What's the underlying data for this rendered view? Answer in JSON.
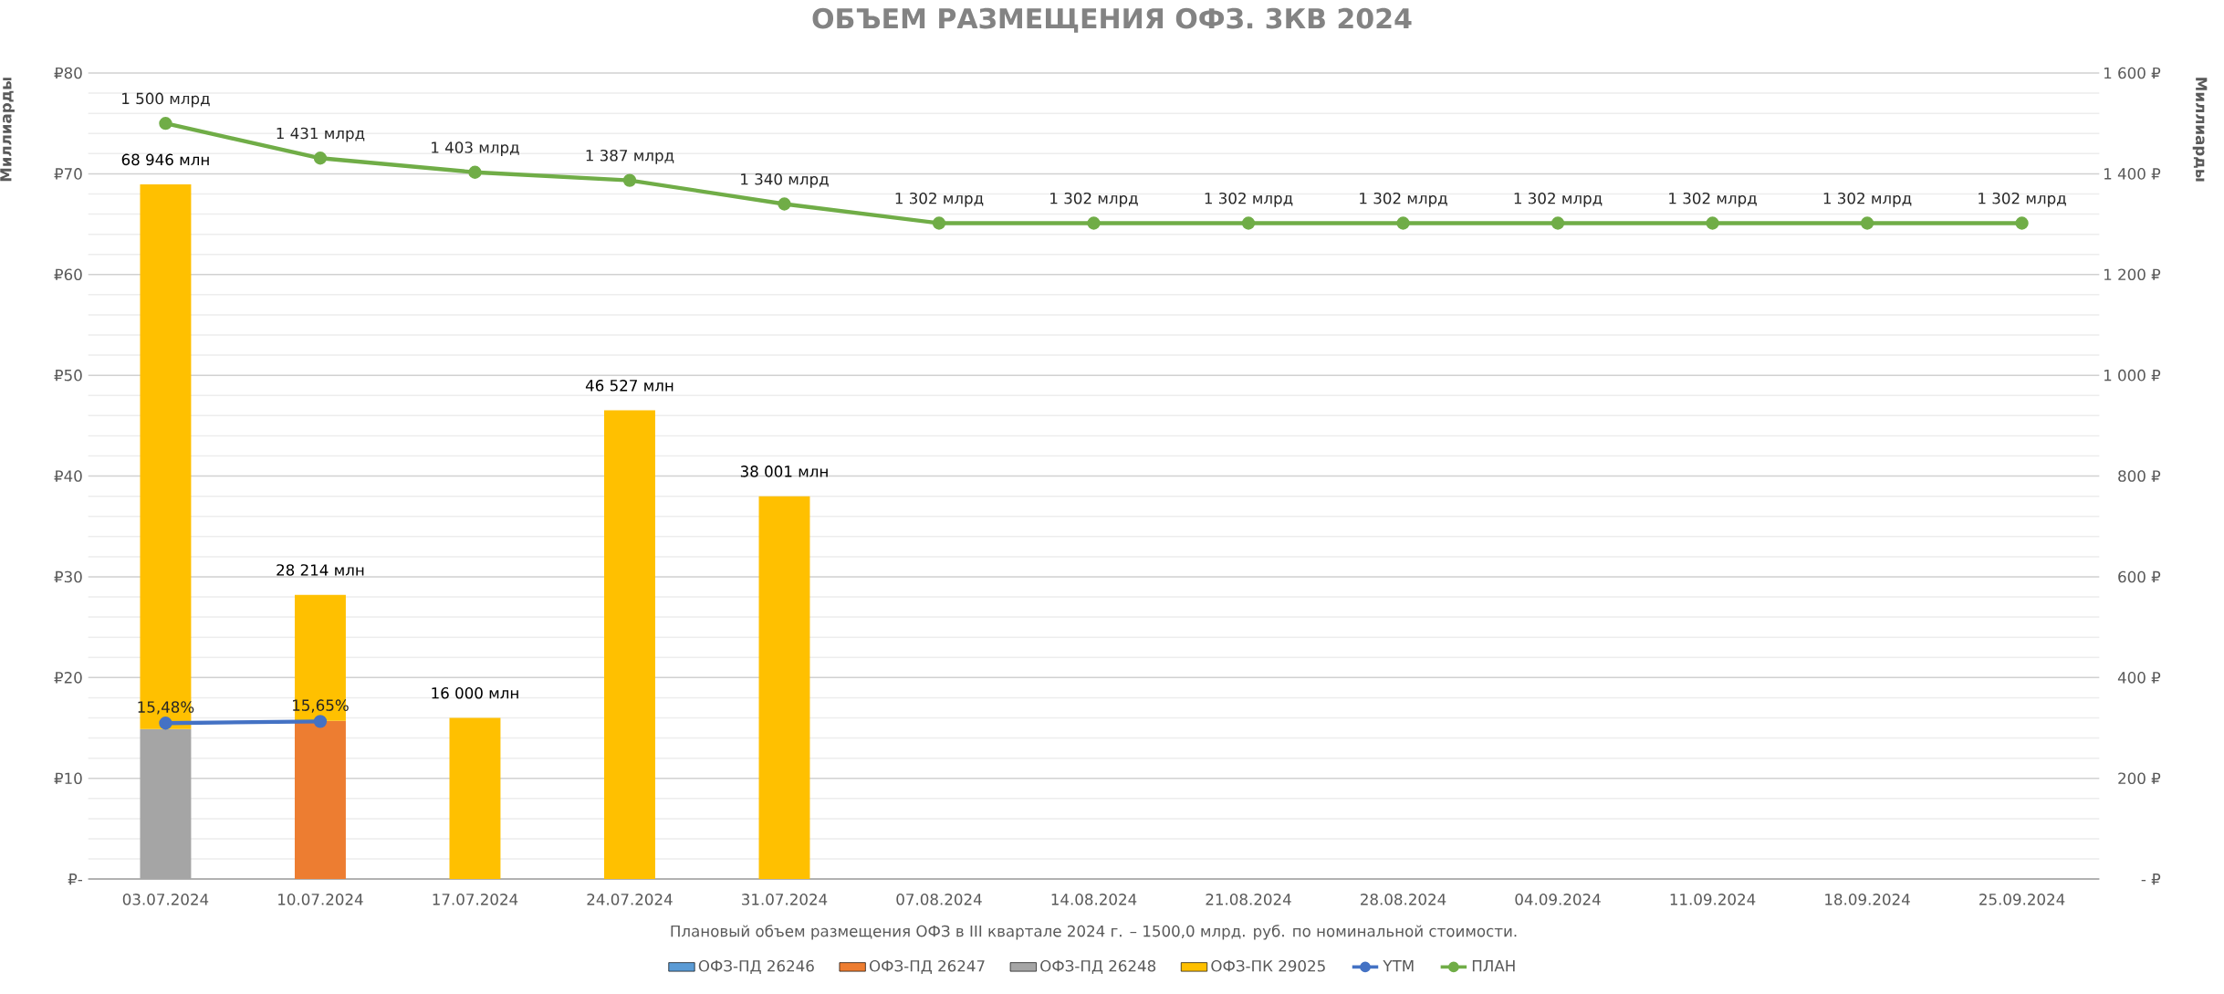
{
  "chart_data": {
    "type": "bar",
    "stacked": true,
    "title": "ОБЪЕМ РАЗМЕЩЕНИЯ ОФЗ. 3КВ 2024",
    "xlabel": "Плановый объем размещения ОФЗ в III квартале 2024 г. – 1500,0 млрд. руб. по номинальной стоимости.",
    "ylabel": "Миллиарды",
    "y2label": "Миллиарды",
    "categories": [
      "03.07.2024",
      "10.07.2024",
      "17.07.2024",
      "24.07.2024",
      "31.07.2024",
      "07.08.2024",
      "14.08.2024",
      "21.08.2024",
      "28.08.2024",
      "04.09.2024",
      "11.09.2024",
      "18.09.2024",
      "25.09.2024"
    ],
    "series": [
      {
        "name": "ОФЗ-ПД 26246",
        "color": "#5b9bd5",
        "values": [
          null,
          null,
          null,
          null,
          null,
          null,
          null,
          null,
          null,
          null,
          null,
          null,
          null
        ]
      },
      {
        "name": "ОФЗ-ПД 26247",
        "color": "#ed7d31",
        "values": [
          null,
          15.7,
          null,
          null,
          null,
          null,
          null,
          null,
          null,
          null,
          null,
          null,
          null
        ]
      },
      {
        "name": "ОФЗ-ПД 26248",
        "color": "#a5a5a5",
        "values": [
          14.9,
          null,
          null,
          null,
          null,
          null,
          null,
          null,
          null,
          null,
          null,
          null,
          null
        ]
      },
      {
        "name": "ОФЗ-ПК 29025",
        "color": "#ffc000",
        "values": [
          54.046,
          12.514,
          16.0,
          46.527,
          38.001,
          null,
          null,
          null,
          null,
          null,
          null,
          null,
          null
        ]
      },
      {
        "name": "YTM",
        "type": "line",
        "axis": "y",
        "color": "#4472c4",
        "values": [
          15.48,
          15.65,
          null,
          null,
          null,
          null,
          null,
          null,
          null,
          null,
          null,
          null,
          null
        ],
        "value_labels": [
          "15,48%",
          "15,65%",
          null,
          null,
          null,
          null,
          null,
          null,
          null,
          null,
          null,
          null,
          null
        ]
      },
      {
        "name": "ПЛАН",
        "type": "line",
        "axis": "y2",
        "color": "#70ad47",
        "values": [
          1500,
          1431,
          1403,
          1387,
          1340,
          1302,
          1302,
          1302,
          1302,
          1302,
          1302,
          1302,
          1302
        ],
        "value_labels": [
          "1 500 млрд",
          "1 431 млрд",
          "1 403 млрд",
          "1 387 млрд",
          "1 340 млрд",
          "1 302 млрд",
          "1 302 млрд",
          "1 302 млрд",
          "1 302 млрд",
          "1 302 млрд",
          "1 302 млрд",
          "1 302  млрд",
          "1 302 млрд"
        ]
      }
    ],
    "totals": [
      "68 946 млн",
      "28 214 млн",
      "16 000 млн",
      "46 527 млн",
      "38 001 млн",
      null,
      null,
      null,
      null,
      null,
      null,
      null,
      null
    ],
    "ylim": [
      0,
      80
    ],
    "yticks": [
      {
        "value": 0,
        "label": "₽-"
      },
      {
        "value": 10,
        "label": "₽10"
      },
      {
        "value": 20,
        "label": "₽20"
      },
      {
        "value": 30,
        "label": "₽30"
      },
      {
        "value": 40,
        "label": "₽40"
      },
      {
        "value": 50,
        "label": "₽50"
      },
      {
        "value": 60,
        "label": "₽60"
      },
      {
        "value": 70,
        "label": "₽70"
      },
      {
        "value": 80,
        "label": "₽80"
      }
    ],
    "y2lim": [
      0,
      1600
    ],
    "y2ticks": [
      {
        "value": 0,
        "label": "-  ₽"
      },
      {
        "value": 200,
        "label": "200 ₽"
      },
      {
        "value": 400,
        "label": "400 ₽"
      },
      {
        "value": 600,
        "label": "600 ₽"
      },
      {
        "value": 800,
        "label": "800 ₽"
      },
      {
        "value": 1000,
        "label": "1 000 ₽"
      },
      {
        "value": 1200,
        "label": "1 200 ₽"
      },
      {
        "value": 1400,
        "label": "1 400 ₽"
      },
      {
        "value": 1600,
        "label": "1 600 ₽"
      }
    ],
    "grid": "y",
    "legend": "bottom",
    "marker": "circle",
    "line_style": "solid"
  }
}
